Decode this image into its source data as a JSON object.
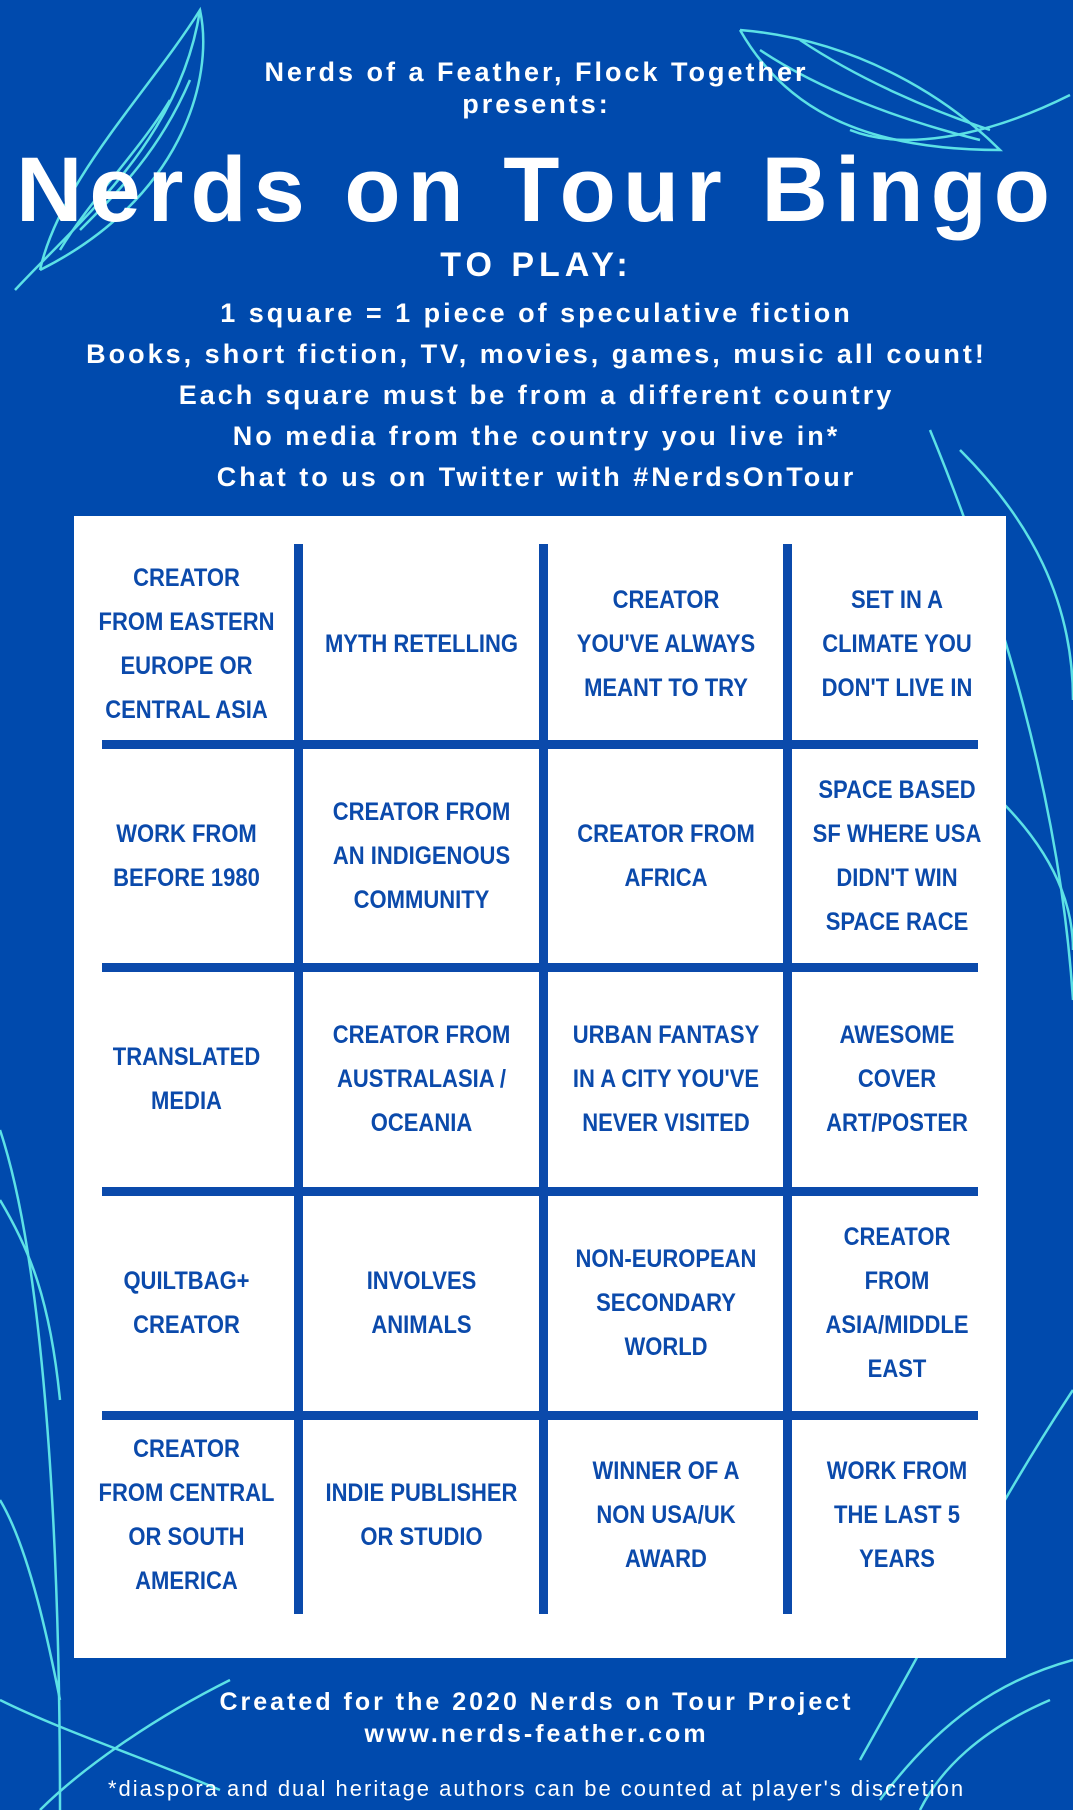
{
  "header": {
    "presenter": "Nerds of a Feather, Flock Together",
    "presents": "presents:",
    "title": "Nerds on Tour Bingo",
    "to_play": "TO PLAY:",
    "rules": [
      "1 square = 1 piece of speculative fiction",
      "Books, short fiction, TV, movies, games, music all count!",
      "Each square must be from a different country",
      "No media from the country you live in*",
      "Chat to us on Twitter with #NerdsOnTour"
    ]
  },
  "bingo": {
    "rows": [
      [
        "Creator from Eastern Europe or Central Asia",
        "Myth retelling",
        "Creator you've always meant to try",
        "Set in a climate you don't live in"
      ],
      [
        "Work from before 1980",
        "Creator from an Indigenous community",
        "Creator from Africa",
        "Space based SF where USA didn't win space race"
      ],
      [
        "Translated media",
        "Creator from Australasia / Oceania",
        "Urban fantasy in a city you've never visited",
        "Awesome cover art/poster"
      ],
      [
        "QUILTBAG+ creator",
        "Involves animals",
        "Non-European secondary world",
        "Creator from Asia/Middle East"
      ],
      [
        "Creator from Central or South America",
        "Indie publisher or studio",
        "Winner of a non USA/UK award",
        "Work from the last 5 years"
      ]
    ]
  },
  "footer": {
    "created": "Created for the 2020 Nerds on Tour Project",
    "website": "www.nerds-feather.com",
    "note": "*diaspora and dual heritage authors can be counted at player's discretion"
  },
  "colors": {
    "background": "#004aad",
    "feather": "#5ce1e6",
    "grid": "#0b4aab",
    "card": "#ffffff"
  }
}
